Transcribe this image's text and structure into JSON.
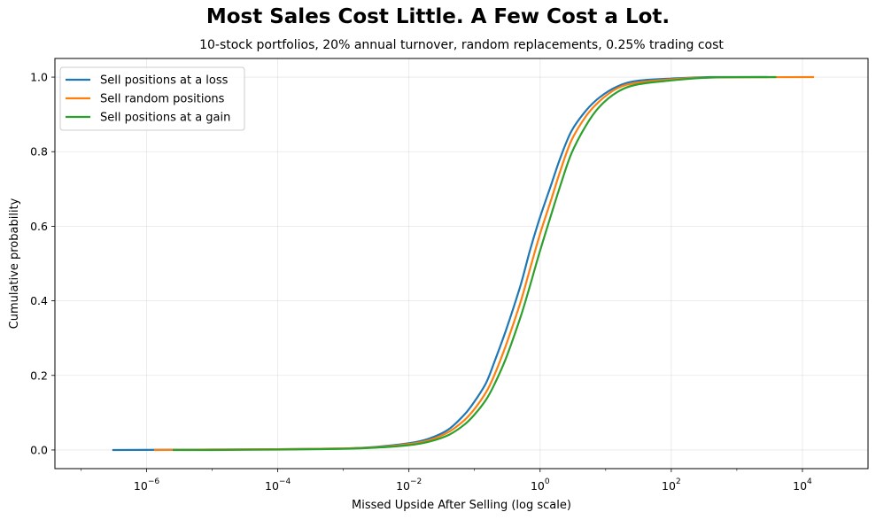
{
  "chart_data": {
    "type": "line",
    "title": "Most Sales Cost Little. A Few Cost a Lot.",
    "subtitle": "10-stock portfolios, 20% annual turnover, random replacements, 0.25% trading cost",
    "xlabel": "Missed Upside After Selling (log scale)",
    "ylabel": "Cumulative probability",
    "xscale": "log",
    "xlim": [
      4e-08,
      100000.0
    ],
    "ylim": [
      -0.05,
      1.05
    ],
    "grid": true,
    "legend_position": "upper-left",
    "x_ticks": [
      {
        "value": 1e-06,
        "base": "10",
        "exp": "−6"
      },
      {
        "value": 0.0001,
        "base": "10",
        "exp": "−4"
      },
      {
        "value": 0.01,
        "base": "10",
        "exp": "−2"
      },
      {
        "value": 1,
        "base": "10",
        "exp": "0"
      },
      {
        "value": 100,
        "base": "10",
        "exp": "2"
      },
      {
        "value": 10000,
        "base": "10",
        "exp": "4"
      }
    ],
    "y_ticks": [
      {
        "value": 0.0,
        "label": "0.0"
      },
      {
        "value": 0.2,
        "label": "0.2"
      },
      {
        "value": 0.4,
        "label": "0.4"
      },
      {
        "value": 0.6,
        "label": "0.6"
      },
      {
        "value": 0.8,
        "label": "0.8"
      },
      {
        "value": 1.0,
        "label": "1.0"
      }
    ],
    "series": [
      {
        "name": "Sell positions at a loss",
        "color": "#1f77b4",
        "points": [
          [
            3e-07,
            0.0
          ],
          [
            1e-05,
            0.001
          ],
          [
            0.0001,
            0.002
          ],
          [
            0.001,
            0.004
          ],
          [
            0.003,
            0.008
          ],
          [
            0.01,
            0.018
          ],
          [
            0.02,
            0.03
          ],
          [
            0.04,
            0.055
          ],
          [
            0.07,
            0.095
          ],
          [
            0.1,
            0.13
          ],
          [
            0.15,
            0.18
          ],
          [
            0.2,
            0.235
          ],
          [
            0.3,
            0.32
          ],
          [
            0.5,
            0.44
          ],
          [
            0.7,
            0.535
          ],
          [
            1,
            0.625
          ],
          [
            1.5,
            0.715
          ],
          [
            2,
            0.78
          ],
          [
            3,
            0.855
          ],
          [
            5,
            0.91
          ],
          [
            8,
            0.945
          ],
          [
            15,
            0.975
          ],
          [
            30,
            0.99
          ],
          [
            100,
            0.996
          ],
          [
            400,
            1.0
          ],
          [
            3000,
            1.0
          ]
        ]
      },
      {
        "name": "Sell random positions",
        "color": "#ff7f0e",
        "points": [
          [
            1.3e-06,
            0.0
          ],
          [
            1e-05,
            0.001
          ],
          [
            0.0001,
            0.002
          ],
          [
            0.001,
            0.004
          ],
          [
            0.003,
            0.007
          ],
          [
            0.01,
            0.016
          ],
          [
            0.02,
            0.026
          ],
          [
            0.04,
            0.048
          ],
          [
            0.07,
            0.08
          ],
          [
            0.1,
            0.11
          ],
          [
            0.15,
            0.155
          ],
          [
            0.2,
            0.2
          ],
          [
            0.3,
            0.28
          ],
          [
            0.5,
            0.395
          ],
          [
            0.7,
            0.485
          ],
          [
            1,
            0.58
          ],
          [
            1.5,
            0.675
          ],
          [
            2,
            0.745
          ],
          [
            3,
            0.83
          ],
          [
            5,
            0.895
          ],
          [
            8,
            0.935
          ],
          [
            15,
            0.97
          ],
          [
            30,
            0.985
          ],
          [
            100,
            0.994
          ],
          [
            400,
            0.999
          ],
          [
            15000,
            1.0
          ]
        ]
      },
      {
        "name": "Sell positions at a gain",
        "color": "#2ca02c",
        "points": [
          [
            2.5e-06,
            0.0
          ],
          [
            1e-05,
            0.0
          ],
          [
            0.0001,
            0.001
          ],
          [
            0.001,
            0.003
          ],
          [
            0.003,
            0.006
          ],
          [
            0.01,
            0.013
          ],
          [
            0.02,
            0.022
          ],
          [
            0.04,
            0.04
          ],
          [
            0.07,
            0.068
          ],
          [
            0.1,
            0.095
          ],
          [
            0.15,
            0.135
          ],
          [
            0.2,
            0.175
          ],
          [
            0.3,
            0.245
          ],
          [
            0.5,
            0.355
          ],
          [
            0.7,
            0.44
          ],
          [
            1,
            0.535
          ],
          [
            1.5,
            0.635
          ],
          [
            2,
            0.705
          ],
          [
            3,
            0.795
          ],
          [
            5,
            0.87
          ],
          [
            8,
            0.92
          ],
          [
            15,
            0.96
          ],
          [
            30,
            0.98
          ],
          [
            100,
            0.991
          ],
          [
            400,
            0.999
          ],
          [
            4000,
            1.0
          ]
        ]
      }
    ]
  }
}
